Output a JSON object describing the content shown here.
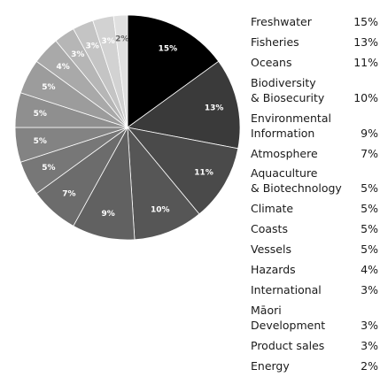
{
  "chart_data": {
    "type": "pie",
    "title": "",
    "slices": [
      {
        "label": "Freshwater",
        "value": 15,
        "display": "15%",
        "color": "#000000",
        "text_color": "#ffffff"
      },
      {
        "label": "Fisheries",
        "value": 13,
        "display": "13%",
        "color": "#3a3a3a",
        "text_color": "#ffffff"
      },
      {
        "label": "Oceans",
        "value": 11,
        "display": "11%",
        "color": "#4a4a4a",
        "text_color": "#ffffff"
      },
      {
        "label": "Biodiversity\n& Biosecurity",
        "value": 10,
        "display": "10%",
        "color": "#565656",
        "text_color": "#ffffff"
      },
      {
        "label": "Environmental\nInformation",
        "value": 9,
        "display": "9%",
        "color": "#616161",
        "text_color": "#ffffff"
      },
      {
        "label": "Atmosphere",
        "value": 7,
        "display": "7%",
        "color": "#6c6c6c",
        "text_color": "#ffffff"
      },
      {
        "label": "Aquaculture\n& Biotechnology",
        "value": 5,
        "display": "5%",
        "color": "#777777",
        "text_color": "#ffffff"
      },
      {
        "label": "Climate",
        "value": 5,
        "display": "5%",
        "color": "#838383",
        "text_color": "#ffffff"
      },
      {
        "label": "Coasts",
        "value": 5,
        "display": "5%",
        "color": "#8f8f8f",
        "text_color": "#ffffff"
      },
      {
        "label": "Vessels",
        "value": 5,
        "display": "5%",
        "color": "#9c9c9c",
        "text_color": "#ffffff"
      },
      {
        "label": "Hazards",
        "value": 4,
        "display": "4%",
        "color": "#a9a9a9",
        "text_color": "#ffffff"
      },
      {
        "label": "International",
        "value": 3,
        "display": "3%",
        "color": "#b6b6b6",
        "text_color": "#ffffff"
      },
      {
        "label": "Māori\nDevelopment",
        "value": 3,
        "display": "3%",
        "color": "#c4c4c4",
        "text_color": "#ffffff"
      },
      {
        "label": "Product sales",
        "value": 3,
        "display": "3%",
        "color": "#d2d2d2",
        "text_color": "#ffffff"
      },
      {
        "label": "Energy",
        "value": 2,
        "display": "2%",
        "color": "#e0e0e0",
        "text_color": "#666666"
      }
    ]
  }
}
